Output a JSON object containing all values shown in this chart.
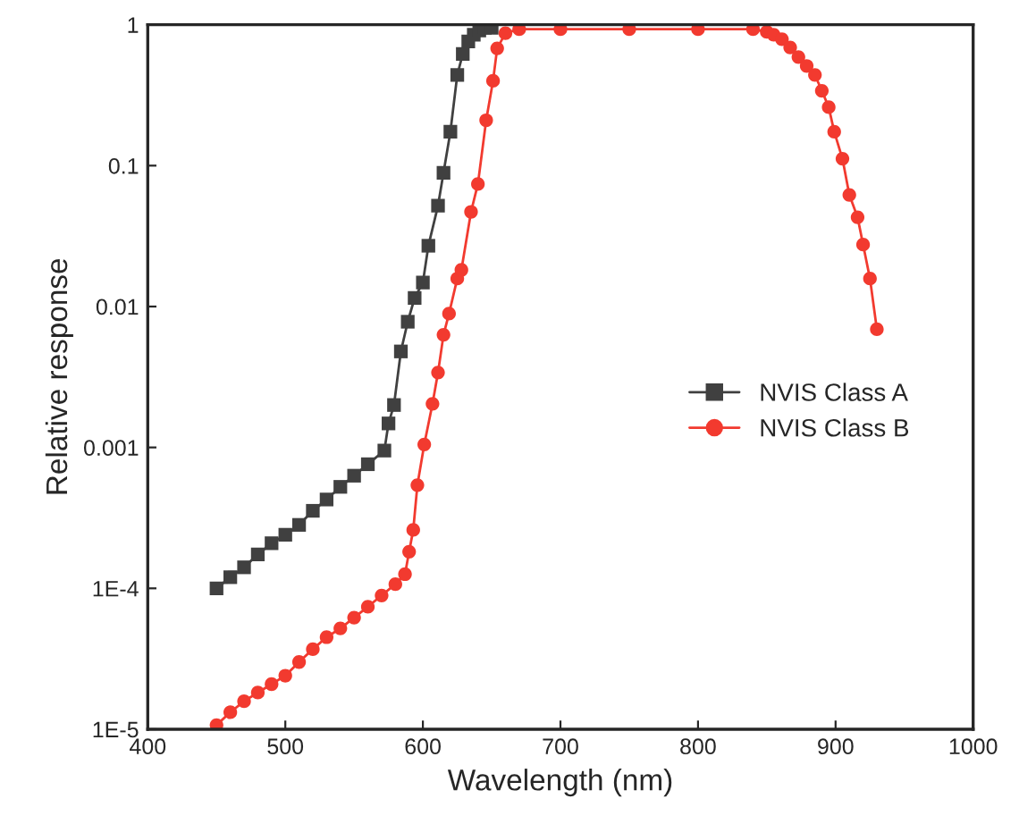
{
  "chart_data": {
    "type": "line",
    "xlabel": "Wavelength (nm)",
    "ylabel": "Relative response",
    "log": "y",
    "grid": false,
    "legend": "center right",
    "xlim": [
      400,
      1000
    ],
    "xticks": [
      400,
      500,
      600,
      700,
      800,
      900,
      1000
    ],
    "ylim": [
      1e-05,
      1
    ],
    "yticks": [
      {
        "value": 1e-05,
        "label": "1E-5"
      },
      {
        "value": 0.0001,
        "label": "1E-4"
      },
      {
        "value": 0.001,
        "label": "0.001"
      },
      {
        "value": 0.01,
        "label": "0.01"
      },
      {
        "value": 0.1,
        "label": "0.1"
      },
      {
        "value": 1,
        "label": "1"
      }
    ],
    "series": [
      {
        "name": "NVIS Class A",
        "color": "#404040",
        "marker": "square",
        "x": [
          450,
          460,
          470,
          480,
          490,
          500,
          510,
          520,
          530,
          540,
          550,
          560,
          572,
          575,
          579,
          584,
          589,
          594,
          600,
          604,
          611,
          615,
          620,
          625,
          629,
          633,
          637,
          641,
          645,
          650
        ],
        "values": [
          0.0001,
          0.00012,
          0.000141,
          0.000174,
          0.000209,
          0.00024,
          0.000282,
          0.000355,
          0.000427,
          0.000525,
          0.00063,
          0.00076,
          0.00095,
          0.00148,
          0.002,
          0.0048,
          0.0078,
          0.0115,
          0.0148,
          0.027,
          0.052,
          0.089,
          0.174,
          0.44,
          0.62,
          0.76,
          0.85,
          0.91,
          0.95,
          0.95
        ]
      },
      {
        "name": "NVIS Class B",
        "color": "#f23a2f",
        "marker": "circle",
        "x": [
          450,
          460,
          470,
          480,
          490,
          500,
          510,
          520,
          530,
          540,
          550,
          560,
          570,
          580,
          587,
          590,
          593,
          596,
          601,
          607,
          611,
          615,
          619,
          625,
          628,
          635,
          640,
          646,
          651,
          654,
          660,
          670,
          700,
          750,
          800,
          840,
          850,
          855,
          861,
          867,
          873,
          879,
          885,
          890,
          895,
          899,
          905,
          910,
          916,
          920,
          925,
          930
        ],
        "values": [
          1.07e-05,
          1.32e-05,
          1.58e-05,
          1.82e-05,
          2.09e-05,
          2.4e-05,
          3e-05,
          3.7e-05,
          4.5e-05,
          5.2e-05,
          6.2e-05,
          7.4e-05,
          8.9e-05,
          0.000107,
          0.000126,
          0.000182,
          0.00026,
          0.00054,
          0.00105,
          0.00204,
          0.0034,
          0.0063,
          0.0089,
          0.0158,
          0.0182,
          0.047,
          0.074,
          0.21,
          0.4,
          0.68,
          0.87,
          0.93,
          0.93,
          0.93,
          0.93,
          0.93,
          0.89,
          0.85,
          0.79,
          0.69,
          0.59,
          0.51,
          0.44,
          0.34,
          0.26,
          0.174,
          0.112,
          0.062,
          0.043,
          0.0275,
          0.0158,
          0.0069
        ]
      }
    ]
  }
}
